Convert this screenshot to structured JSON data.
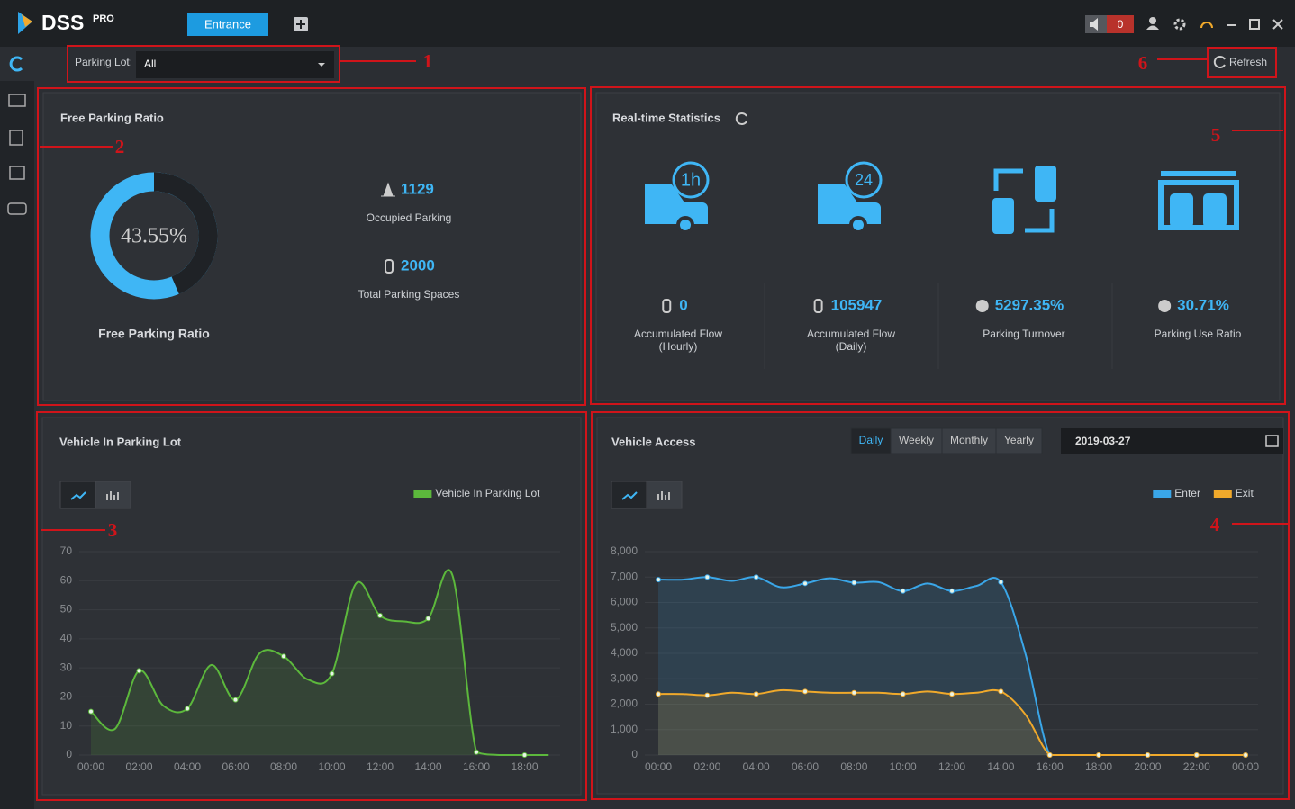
{
  "header": {
    "logo": "DSS",
    "logo_sup": "PRO",
    "tab": "Entrance",
    "alarm_count": 0
  },
  "toolbar": {
    "parking_lot_label": "Parking Lot:",
    "parking_lot_value": "All",
    "refresh": "Refresh"
  },
  "callouts": [
    "1",
    "2",
    "3",
    "4",
    "5",
    "6"
  ],
  "occupancy": {
    "occupied": 1129,
    "occupied_label": "Occupied Parking",
    "total": 2000,
    "total_label": "Total Parking Spaces"
  },
  "realtime": {
    "title": "Real-time Statistics",
    "items": [
      {
        "value": 0,
        "label": [
          "Accumulated Flow",
          "(Hourly)"
        ]
      },
      {
        "value": 105947,
        "label": [
          "Accumulated Flow",
          "(Daily)"
        ]
      },
      {
        "value": "5297.35%",
        "label": [
          "Parking Turnover"
        ]
      },
      {
        "value": "30.71%",
        "label": [
          "Parking Use Ratio"
        ]
      }
    ]
  },
  "vehicle_access_controls": {
    "periods": [
      "Daily",
      "Weekly",
      "Monthly",
      "Yearly"
    ],
    "active_period": 0,
    "date": "2019-03-27"
  },
  "chart_data": [
    {
      "type": "donut",
      "title": "Free Parking Ratio",
      "caption": "Free Parking Ratio",
      "values": [
        43.55
      ],
      "value_labels": [
        "43.55%"
      ],
      "color": "#1f2226",
      "ring_color": "#3fb6f5"
    },
    {
      "type": "line",
      "title": "Vehicle In Parking Lot",
      "categories": [
        "00:00",
        null,
        "02:00",
        null,
        "04:00",
        null,
        "06:00",
        null,
        "08:00",
        null,
        "10:00",
        null,
        "12:00",
        null,
        "14:00",
        null,
        "16:00",
        null,
        "18:00",
        null
      ],
      "series": [
        {
          "name": "Vehicle In Parking Lot",
          "color": "#5cb83c",
          "values": [
            15,
            9,
            29,
            17,
            16,
            31,
            19,
            35,
            34,
            26,
            28,
            59,
            48,
            46,
            47,
            62,
            1,
            0,
            0,
            0
          ]
        }
      ],
      "ylim": [
        0,
        70
      ],
      "yticks": [
        0,
        10,
        20,
        30,
        40,
        50,
        60,
        70
      ],
      "grid": true,
      "legend": "top-right"
    },
    {
      "type": "line",
      "title": "Vehicle Access",
      "categories": [
        "00:00",
        null,
        "02:00",
        null,
        "04:00",
        null,
        "06:00",
        null,
        "08:00",
        null,
        "10:00",
        null,
        "12:00",
        null,
        "14:00",
        null,
        "16:00",
        null,
        "18:00",
        null,
        "20:00",
        null,
        "22:00",
        null,
        "00:00"
      ],
      "series": [
        {
          "name": "Enter",
          "color": "#3aa6e8",
          "values": [
            6900,
            6900,
            7000,
            6850,
            7000,
            6600,
            6750,
            6950,
            6780,
            6800,
            6450,
            6750,
            6450,
            6650,
            6800,
            4000,
            0,
            0,
            0,
            0,
            0,
            0,
            0,
            0,
            0
          ]
        },
        {
          "name": "Exit",
          "color": "#f0a92b",
          "values": [
            2400,
            2400,
            2350,
            2450,
            2400,
            2550,
            2500,
            2450,
            2450,
            2450,
            2400,
            2500,
            2400,
            2450,
            2500,
            1600,
            0,
            0,
            0,
            0,
            0,
            0,
            0,
            0,
            0
          ]
        }
      ],
      "ylim": [
        0,
        8000
      ],
      "yticks": [
        0,
        {
          "value": 1000,
          "label": "1,000"
        },
        {
          "value": 2000,
          "label": "2,000"
        },
        {
          "value": 3000,
          "label": "3,000"
        },
        {
          "value": 4000,
          "label": "4,000"
        },
        {
          "value": 5000,
          "label": "5,000"
        },
        {
          "value": 6000,
          "label": "6,000"
        },
        {
          "value": 7000,
          "label": "7,000"
        },
        {
          "value": 8000,
          "label": "8,000"
        }
      ],
      "grid": true,
      "legend": "top-right"
    }
  ]
}
